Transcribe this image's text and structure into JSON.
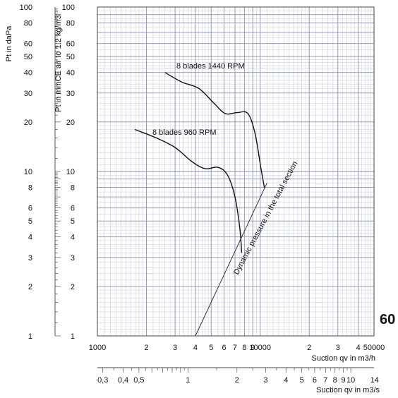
{
  "chart_data": {
    "type": "line",
    "scale": "log-log",
    "grid": true,
    "xlabel": "Suction qv in m3/h",
    "xlabel2": "Suction qv in m3/s",
    "ylabel": "Pt in daPa",
    "ylabel2": "Pt in mmCE air to 1.2 kg/m3",
    "xlim": [
      1000,
      50000
    ],
    "ylim": [
      1,
      100
    ],
    "x_ticks": [
      {
        "value": 1000,
        "label": "1000"
      },
      {
        "value": 2000,
        "label": "2"
      },
      {
        "value": 3000,
        "label": "3"
      },
      {
        "value": 4000,
        "label": "4"
      },
      {
        "value": 5000,
        "label": "5"
      },
      {
        "value": 6000,
        "label": "6"
      },
      {
        "value": 7000,
        "label": "7"
      },
      {
        "value": 8000,
        "label": "8"
      },
      {
        "value": 9000,
        "label": "9"
      },
      {
        "value": 10000,
        "label": "10000"
      },
      {
        "value": 20000,
        "label": "2"
      },
      {
        "value": 30000,
        "label": "3"
      },
      {
        "value": 40000,
        "label": "4"
      },
      {
        "value": 50000,
        "label": "50000"
      }
    ],
    "x2_ticks": [
      {
        "value": 0.3,
        "label": "0,3"
      },
      {
        "value": 0.4,
        "label": "0,4"
      },
      {
        "value": 0.5,
        "label": "0,5"
      },
      {
        "value": 1,
        "label": "1"
      },
      {
        "value": 2,
        "label": "2"
      },
      {
        "value": 3,
        "label": "3"
      },
      {
        "value": 4,
        "label": "4"
      },
      {
        "value": 5,
        "label": "5"
      },
      {
        "value": 6,
        "label": "6"
      },
      {
        "value": 7,
        "label": "7"
      },
      {
        "value": 8,
        "label": "8"
      },
      {
        "value": 9,
        "label": "9"
      },
      {
        "value": 10,
        "label": "10"
      },
      {
        "value": 14,
        "label": "14"
      }
    ],
    "y_ticks": [
      {
        "value": 1,
        "label": "1"
      },
      {
        "value": 2,
        "label": "2"
      },
      {
        "value": 3,
        "label": "3"
      },
      {
        "value": 4,
        "label": "4"
      },
      {
        "value": 5,
        "label": "5"
      },
      {
        "value": 6,
        "label": "6"
      },
      {
        "value": 8,
        "label": "8"
      },
      {
        "value": 10,
        "label": "10"
      },
      {
        "value": 20,
        "label": "20"
      },
      {
        "value": 30,
        "label": "30"
      },
      {
        "value": 40,
        "label": "40"
      },
      {
        "value": 50,
        "label": "50"
      },
      {
        "value": 60,
        "label": "60"
      },
      {
        "value": 80,
        "label": "80"
      },
      {
        "value": 100,
        "label": "100"
      }
    ],
    "series": [
      {
        "name": "8 blades 1440 RPM",
        "points": [
          [
            2600,
            40
          ],
          [
            3300,
            35
          ],
          [
            4200,
            32
          ],
          [
            5200,
            26
          ],
          [
            6100,
            22.5
          ],
          [
            7200,
            22.8
          ],
          [
            8400,
            22.5
          ],
          [
            9300,
            17
          ],
          [
            10100,
            10.5
          ],
          [
            10600,
            8
          ]
        ]
      },
      {
        "name": "8 blades 960 RPM",
        "points": [
          [
            1700,
            18
          ],
          [
            2300,
            16
          ],
          [
            3000,
            14
          ],
          [
            3800,
            11.5
          ],
          [
            4600,
            10.4
          ],
          [
            5500,
            10.6
          ],
          [
            6300,
            9.5
          ],
          [
            7000,
            7
          ],
          [
            7500,
            4.5
          ],
          [
            7700,
            3.2
          ]
        ]
      },
      {
        "name": "Dynamic pressure in the total section",
        "points": [
          [
            4000,
            1
          ],
          [
            11000,
            8.5
          ]
        ]
      }
    ],
    "annotations": [
      {
        "text": "60"
      }
    ]
  }
}
